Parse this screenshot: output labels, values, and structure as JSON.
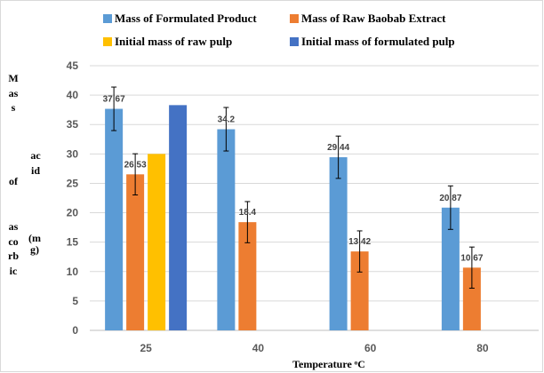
{
  "chart_data": {
    "type": "bar",
    "categories": [
      "25",
      "40",
      "60",
      "80"
    ],
    "series": [
      {
        "name": "Mass of Formulated Product",
        "color": "#5b9bd5",
        "values": [
          37.67,
          34.2,
          29.44,
          20.87
        ],
        "errors": [
          3.7,
          3.7,
          3.6,
          3.7
        ],
        "labels": [
          "37.67",
          "34.2",
          "29.44",
          "20.87"
        ]
      },
      {
        "name": "Mass of Raw Baobab Extract",
        "color": "#ed7d31",
        "values": [
          26.53,
          18.4,
          13.42,
          10.67
        ],
        "errors": [
          3.5,
          3.5,
          3.5,
          3.5
        ],
        "labels": [
          "26.53",
          "18.4",
          "13.42",
          "10.67"
        ]
      },
      {
        "name": "Initial mass of raw pulp",
        "color": "#ffc000",
        "values": [
          30,
          null,
          null,
          null
        ]
      },
      {
        "name": "Initial mass of formulated pulp",
        "color": "#4472c4",
        "values": [
          38.3,
          null,
          null,
          null
        ]
      }
    ],
    "yticks": [
      "0",
      "5",
      "10",
      "15",
      "20",
      "25",
      "30",
      "35",
      "40",
      "45"
    ],
    "ylim": [
      0,
      45
    ],
    "xlabel": "Temperature ᵒC",
    "ylabel": "Mass of ascorbic acid (mg)",
    "ylabel_parts": [
      "Mass",
      "of",
      "ascorbic",
      "acid",
      "(mg)"
    ],
    "legend_position": "top",
    "grid": true
  }
}
